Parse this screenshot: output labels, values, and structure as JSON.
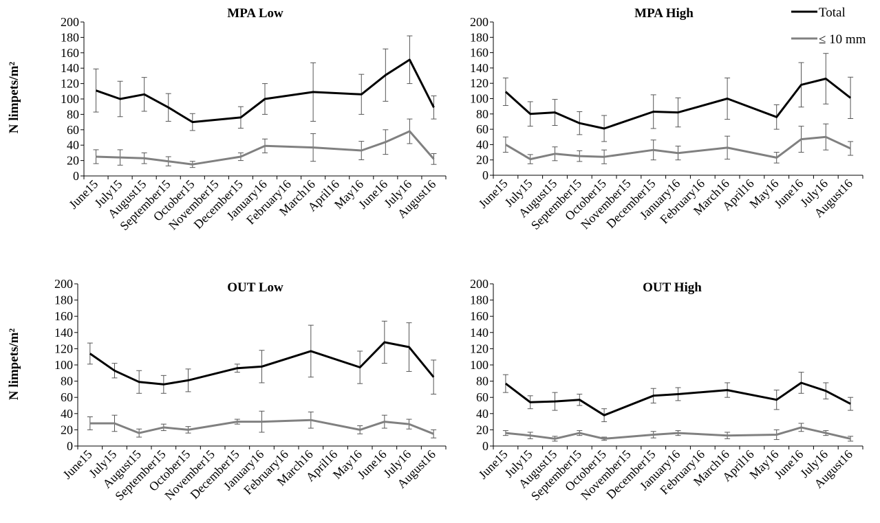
{
  "figure": {
    "ylabel": "N limpets/m²",
    "legend": {
      "placement": "top-right",
      "entries": [
        {
          "label": "Total",
          "color": "#000000"
        },
        {
          "label": "≤ 10 mm",
          "color": "#808080"
        }
      ]
    }
  },
  "chart_data": [
    {
      "type": "line",
      "title": "MPA Low",
      "ylabel": "N limpets/m²",
      "ylim": [
        0,
        200
      ],
      "yticks": [
        0,
        20,
        40,
        60,
        80,
        100,
        120,
        140,
        160,
        180,
        200
      ],
      "categories": [
        "June15",
        "July15",
        "August15",
        "September15",
        "October15",
        "November15",
        "December15",
        "January16",
        "February16",
        "March16",
        "April16",
        "May16",
        "June16",
        "July16",
        "August16"
      ],
      "series": [
        {
          "name": "Total",
          "color": "#000000",
          "values": [
            111,
            100,
            106,
            89,
            70,
            null,
            76,
            100,
            null,
            109,
            null,
            106,
            131,
            151,
            89
          ],
          "errors": [
            28,
            23,
            22,
            18,
            11,
            null,
            14,
            20,
            null,
            38,
            null,
            26,
            34,
            31,
            15
          ]
        },
        {
          "name": "≤ 10 mm",
          "color": "#808080",
          "values": [
            25,
            24,
            23,
            19,
            15,
            null,
            25,
            39,
            null,
            37,
            null,
            33,
            44,
            58,
            22
          ],
          "errors": [
            9,
            10,
            7,
            6,
            4,
            null,
            5,
            9,
            null,
            18,
            null,
            12,
            16,
            16,
            7
          ]
        }
      ]
    },
    {
      "type": "line",
      "title": "MPA High",
      "ylabel": "",
      "ylim": [
        0,
        200
      ],
      "yticks": [
        0,
        20,
        40,
        60,
        80,
        100,
        120,
        140,
        160,
        180,
        200
      ],
      "categories": [
        "June15",
        "July15",
        "August15",
        "September15",
        "October15",
        "November15",
        "December15",
        "January16",
        "February16",
        "March16",
        "April16",
        "May16",
        "June16",
        "July16",
        "August16"
      ],
      "series": [
        {
          "name": "Total",
          "color": "#000000",
          "values": [
            109,
            80,
            82,
            68,
            61,
            null,
            83,
            82,
            null,
            100,
            null,
            76,
            118,
            126,
            101
          ],
          "errors": [
            18,
            16,
            17,
            15,
            17,
            null,
            22,
            19,
            null,
            27,
            null,
            16,
            29,
            33,
            27
          ]
        },
        {
          "name": "≤ 10 mm",
          "color": "#808080",
          "values": [
            40,
            21,
            28,
            25,
            24,
            null,
            33,
            29,
            null,
            36,
            null,
            23,
            47,
            50,
            35
          ],
          "errors": [
            10,
            6,
            9,
            7,
            9,
            null,
            13,
            9,
            null,
            15,
            null,
            7,
            17,
            17,
            9
          ]
        }
      ]
    },
    {
      "type": "line",
      "title": "OUT Low",
      "ylabel": "N limpets/m²",
      "ylim": [
        0,
        200
      ],
      "yticks": [
        0,
        20,
        40,
        60,
        80,
        100,
        120,
        140,
        160,
        180,
        200
      ],
      "categories": [
        "June15",
        "July15",
        "August15",
        "September15",
        "October15",
        "November15",
        "December15",
        "January16",
        "February16",
        "March16",
        "April16",
        "May16",
        "June16",
        "July16",
        "August16"
      ],
      "series": [
        {
          "name": "Total",
          "color": "#000000",
          "values": [
            114,
            93,
            79,
            76,
            81,
            null,
            96,
            98,
            null,
            117,
            null,
            97,
            128,
            122,
            85
          ],
          "errors": [
            13,
            9,
            14,
            11,
            14,
            null,
            5,
            20,
            null,
            32,
            null,
            20,
            26,
            30,
            21
          ]
        },
        {
          "name": "≤ 10 mm",
          "color": "#808080",
          "values": [
            28,
            28,
            16,
            23,
            20,
            null,
            30,
            30,
            null,
            32,
            null,
            20,
            30,
            27,
            15
          ],
          "errors": [
            8,
            10,
            5,
            4,
            4,
            null,
            3,
            13,
            null,
            10,
            null,
            5,
            8,
            6,
            5
          ]
        }
      ]
    },
    {
      "type": "line",
      "title": "OUT High",
      "ylabel": "",
      "ylim": [
        0,
        200
      ],
      "yticks": [
        0,
        20,
        40,
        60,
        80,
        100,
        120,
        140,
        160,
        180,
        200
      ],
      "categories": [
        "June15",
        "July15",
        "August15",
        "September15",
        "October15",
        "November15",
        "December15",
        "January16",
        "February16",
        "March16",
        "April16",
        "May16",
        "June16",
        "July16",
        "August16"
      ],
      "series": [
        {
          "name": "Total",
          "color": "#000000",
          "values": [
            77,
            54,
            55,
            57,
            38,
            null,
            62,
            64,
            null,
            69,
            null,
            57,
            78,
            68,
            52
          ],
          "errors": [
            11,
            8,
            11,
            7,
            8,
            null,
            9,
            8,
            null,
            9,
            null,
            12,
            13,
            10,
            8
          ]
        },
        {
          "name": "≤ 10 mm",
          "color": "#808080",
          "values": [
            16,
            13,
            9,
            16,
            9,
            null,
            14,
            16,
            null,
            13,
            null,
            14,
            23,
            16,
            9
          ],
          "errors": [
            3,
            4,
            3,
            3,
            2,
            null,
            4,
            3,
            null,
            4,
            null,
            6,
            5,
            3,
            3
          ]
        }
      ]
    }
  ]
}
